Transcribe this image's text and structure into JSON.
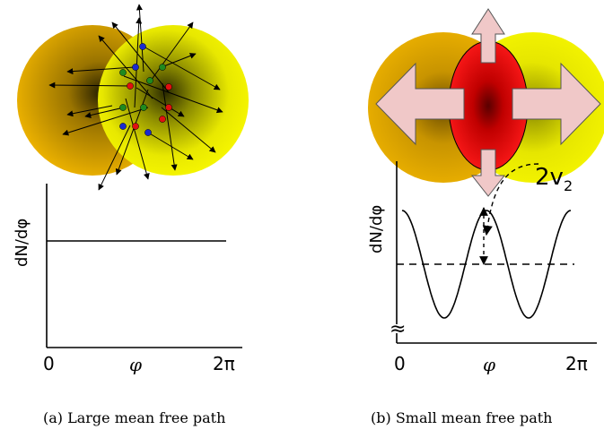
{
  "panels": [
    {
      "id": "a",
      "caption": "(a) Large mean free path",
      "ylabel": "dN/dφ",
      "x_start": "0",
      "x_mid": "φ",
      "x_end": "2π",
      "curve": "flat"
    },
    {
      "id": "b",
      "caption": "(b) Small mean free path",
      "ylabel": "dN/dφ",
      "x_start": "0",
      "x_mid": "φ",
      "x_end": "2π",
      "curve": "cos(2φ)",
      "annotation": "2v",
      "annotation_sub": "2",
      "axis_break_symbol": "≈"
    }
  ],
  "colors": {
    "nucleus_left": "#f0b400",
    "nucleus_right": "#f5f500",
    "overlap_hot": "#ff1010",
    "arrow_fill": "#f0c8c8",
    "particle_blue": "#1a2ad0",
    "particle_green": "#1f8a1f",
    "particle_red": "#e01010"
  }
}
